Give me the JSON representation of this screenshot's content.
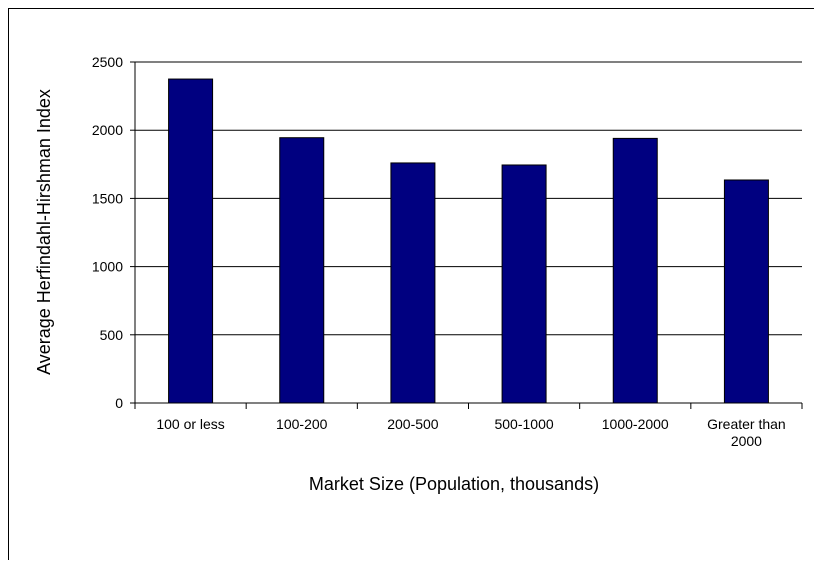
{
  "chart_data": {
    "type": "bar",
    "title": "",
    "xlabel": "Market Size (Population, thousands)",
    "ylabel": "Average Herfindahl-Hirshman Index",
    "categories": [
      [
        "100 or less"
      ],
      [
        "100-200"
      ],
      [
        "200-500"
      ],
      [
        "500-1000"
      ],
      [
        "1000-2000"
      ],
      [
        "Greater than",
        "2000"
      ]
    ],
    "values": [
      2375,
      1945,
      1760,
      1745,
      1940,
      1635
    ],
    "ylim": [
      0,
      2500
    ],
    "yticks": [
      "0",
      "500",
      "1000",
      "1500",
      "2000",
      "2500"
    ],
    "grid": true,
    "bar_color": "#000080"
  }
}
